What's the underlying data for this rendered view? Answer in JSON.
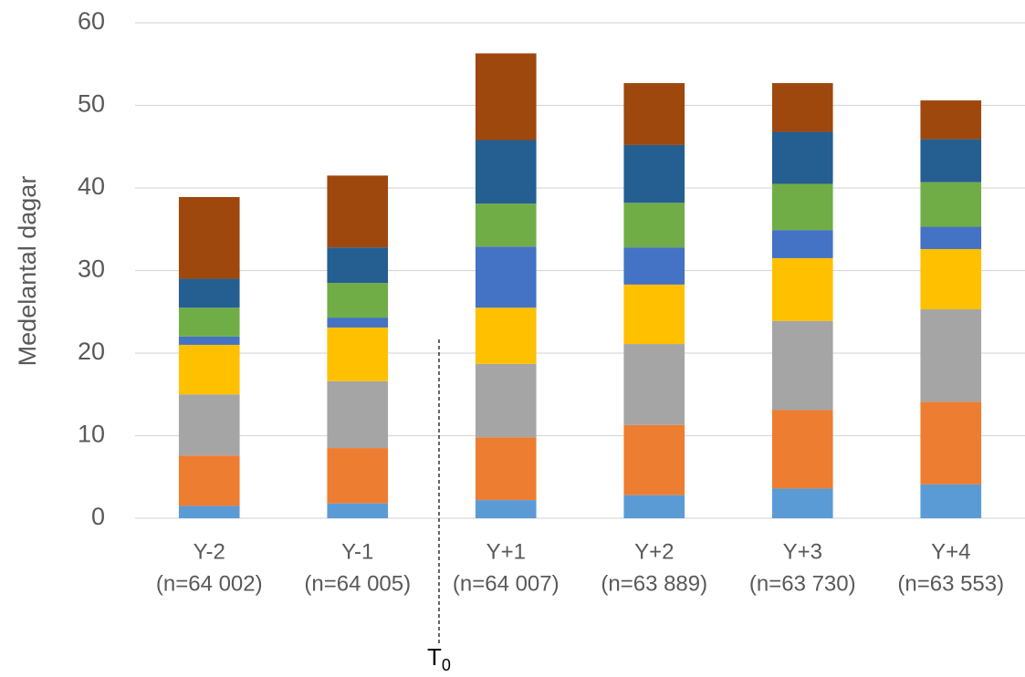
{
  "chart_data": {
    "type": "stacked_bar",
    "ylabel": "Medelantal dagar",
    "categories": [
      [
        "Y-2",
        "(n=64 002)"
      ],
      [
        "Y-1",
        "(n=64 005)"
      ],
      [
        "Y+1",
        "(n=64 007)"
      ],
      [
        "Y+2",
        "(n=63 889)"
      ],
      [
        "Y+3",
        "(n=63 730)"
      ],
      [
        "Y+4",
        "(n=63 553)"
      ]
    ],
    "series": [
      {
        "color": "#5b9bd5",
        "values": [
          1.5,
          1.8,
          2.2,
          2.8,
          3.6,
          4.1
        ]
      },
      {
        "color": "#ed7d31",
        "values": [
          6.1,
          6.7,
          7.6,
          8.5,
          9.5,
          10.0
        ]
      },
      {
        "color": "#a5a5a5",
        "values": [
          7.4,
          8.1,
          8.9,
          9.8,
          10.8,
          11.2
        ]
      },
      {
        "color": "#ffc000",
        "values": [
          6.0,
          6.5,
          6.8,
          7.2,
          7.6,
          7.3
        ]
      },
      {
        "color": "#4472c4",
        "values": [
          1.0,
          1.2,
          7.4,
          4.5,
          3.4,
          2.7
        ]
      },
      {
        "color": "#70ad47",
        "values": [
          3.5,
          4.2,
          5.2,
          5.4,
          5.6,
          5.4
        ]
      },
      {
        "color": "#255e91",
        "values": [
          3.5,
          4.3,
          7.7,
          7.0,
          6.3,
          5.2
        ]
      },
      {
        "color": "#9e480e",
        "values": [
          9.9,
          8.7,
          10.5,
          7.5,
          5.9,
          4.7
        ]
      }
    ],
    "annotation": {
      "text": "T",
      "subscript": "0"
    },
    "ylim": [
      0,
      60
    ],
    "yticks": [
      0,
      10,
      20,
      30,
      40,
      50,
      60
    ],
    "grid": true
  }
}
